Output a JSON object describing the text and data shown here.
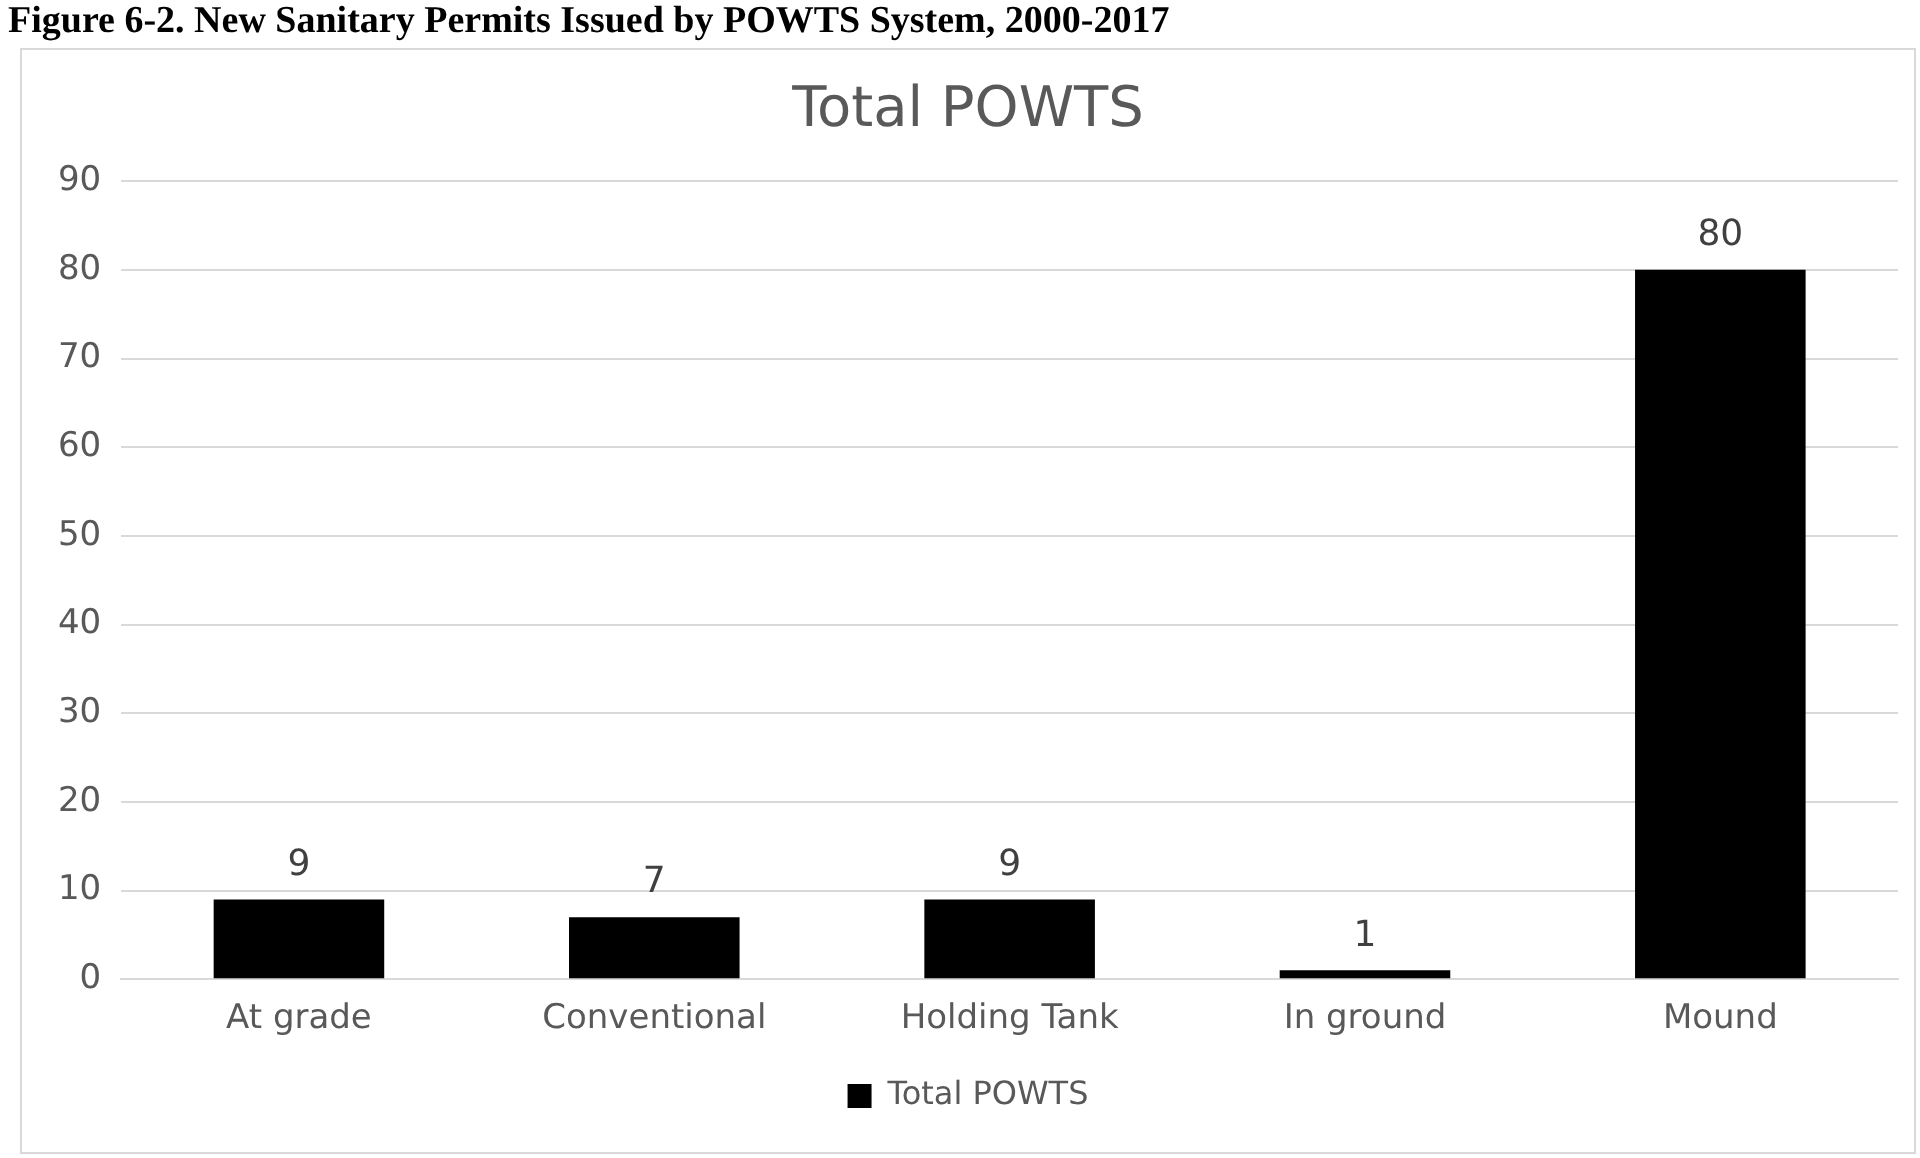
{
  "chart_data": {
    "type": "bar",
    "title": "Total POWTS",
    "annotations": [
      "Figure 6-2. New Sanitary Permits Issued by POWTS System, 2000-2017"
    ],
    "categories": [
      "At grade",
      "Conventional",
      "Holding Tank",
      "In ground",
      "Mound"
    ],
    "series": [
      {
        "name": "Total POWTS",
        "color": "#000000",
        "values": [
          9,
          7,
          9,
          1,
          80
        ]
      }
    ],
    "ylim": [
      0,
      90
    ],
    "yticks": [
      0,
      10,
      20,
      30,
      40,
      50,
      60,
      70,
      80,
      90
    ],
    "grid": "y",
    "legend": "bottom",
    "data_labels": true
  }
}
